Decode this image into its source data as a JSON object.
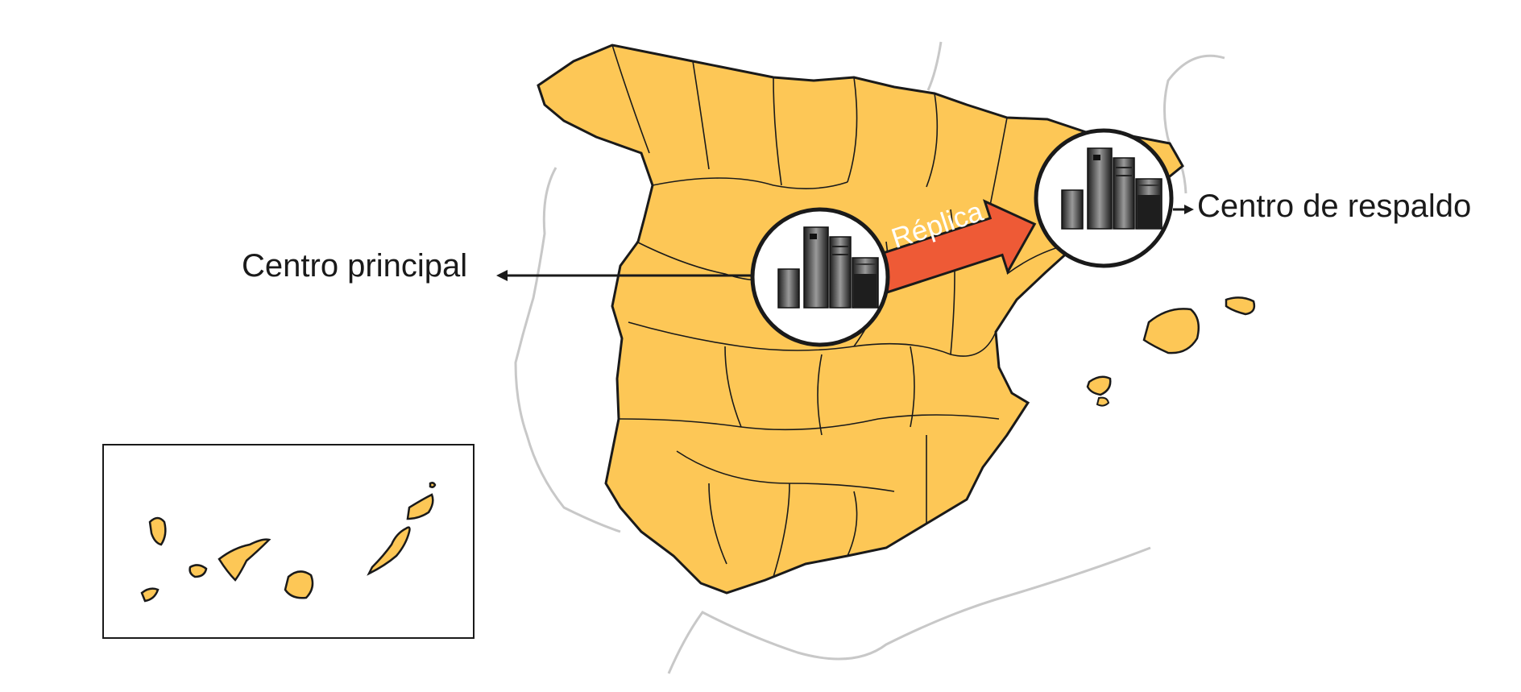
{
  "diagram": {
    "labels": {
      "main_center": "Centro principal",
      "backup_center": "Centro de respaldo",
      "replication": "Réplica"
    },
    "colors": {
      "land": "#fdc756",
      "border": "#1a1a1a",
      "neighbor_coast": "#c8c8c8",
      "arrow": "#ee5a36",
      "server_dark": "#2a2a2a"
    },
    "icons": [
      "server-rack-icon",
      "server-rack-icon",
      "arrow-right-icon"
    ]
  }
}
